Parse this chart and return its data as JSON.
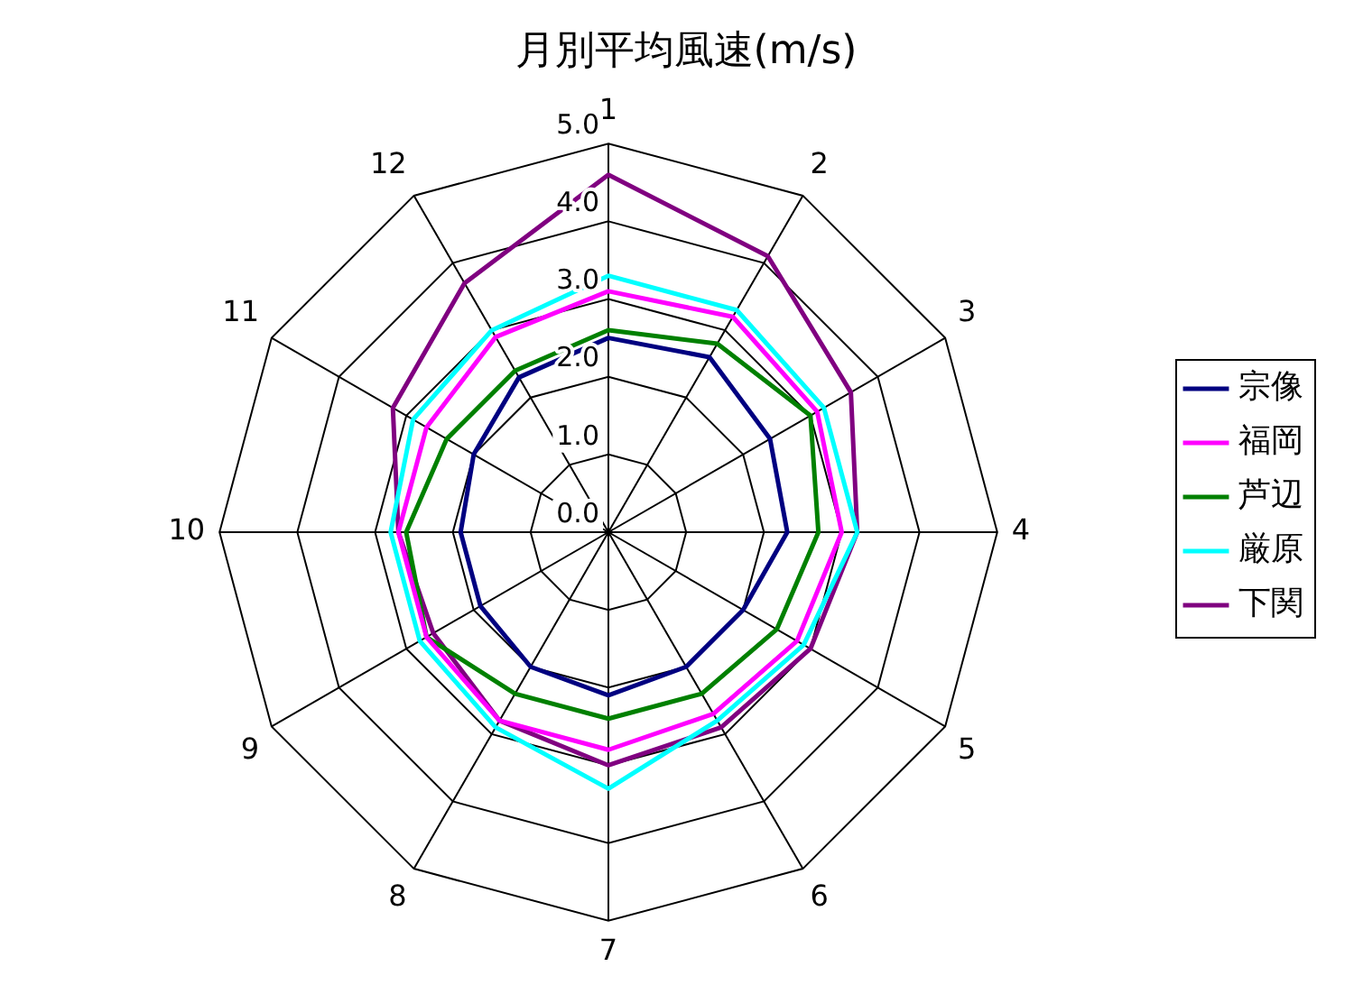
{
  "chart_data": {
    "type": "radar",
    "title": "月別平均風速(m/s)",
    "categories": [
      "1",
      "2",
      "3",
      "4",
      "5",
      "6",
      "7",
      "8",
      "9",
      "10",
      "11",
      "12"
    ],
    "series": [
      {
        "name": "宗像",
        "color": "#000080",
        "values": [
          2.5,
          2.6,
          2.4,
          2.3,
          2.0,
          2.0,
          2.1,
          2.0,
          1.9,
          1.9,
          2.0,
          2.3
        ]
      },
      {
        "name": "福岡",
        "color": "#ff00ff",
        "values": [
          3.1,
          3.2,
          3.1,
          3.0,
          2.8,
          2.7,
          2.8,
          2.8,
          2.7,
          2.7,
          2.7,
          2.9
        ]
      },
      {
        "name": "芦辺",
        "color": "#008000",
        "values": [
          2.6,
          2.8,
          3.0,
          2.7,
          2.5,
          2.4,
          2.4,
          2.4,
          2.7,
          2.6,
          2.4,
          2.4
        ]
      },
      {
        "name": "厳原",
        "color": "#00ffff",
        "values": [
          3.3,
          3.3,
          3.2,
          3.2,
          2.9,
          2.8,
          3.3,
          2.9,
          2.8,
          2.8,
          2.9,
          3.0
        ]
      },
      {
        "name": "下関",
        "color": "#800080",
        "values": [
          4.6,
          4.1,
          3.6,
          3.2,
          3.0,
          2.9,
          3.0,
          2.8,
          2.6,
          2.7,
          3.2,
          3.7
        ]
      }
    ],
    "ylim": [
      0,
      5
    ],
    "yticks": [
      {
        "value": 0,
        "label": "0.0"
      },
      {
        "value": 1,
        "label": "1.0"
      },
      {
        "value": 2,
        "label": "2.0"
      },
      {
        "value": 3,
        "label": "3.0"
      },
      {
        "value": 4,
        "label": "4.0"
      },
      {
        "value": 5,
        "label": "5.0"
      }
    ],
    "grid": true,
    "legend": "right",
    "marker": "none",
    "line_style": "solid"
  }
}
